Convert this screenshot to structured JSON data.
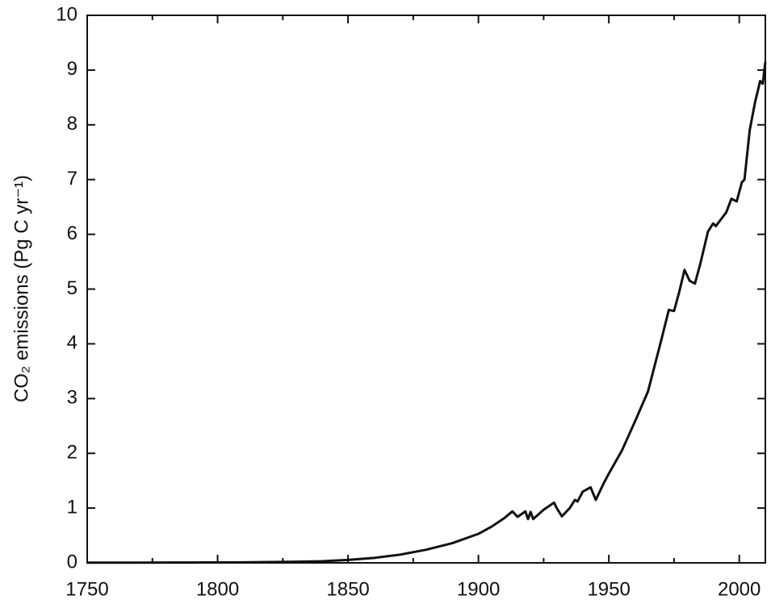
{
  "chart_data": {
    "type": "line",
    "ylabel": "CO₂ emissions (Pg C yr⁻¹)",
    "x": [
      1750,
      1760,
      1770,
      1780,
      1790,
      1800,
      1810,
      1820,
      1830,
      1840,
      1850,
      1860,
      1870,
      1880,
      1890,
      1900,
      1905,
      1910,
      1913,
      1915,
      1918,
      1919,
      1920,
      1921,
      1925,
      1929,
      1930,
      1932,
      1935,
      1937,
      1938,
      1940,
      1943,
      1945,
      1948,
      1950,
      1955,
      1960,
      1965,
      1970,
      1973,
      1975,
      1977,
      1979,
      1981,
      1983,
      1985,
      1988,
      1990,
      1991,
      1995,
      1997,
      1999,
      2001,
      2002,
      2004,
      2006,
      2008,
      2009,
      2010
    ],
    "series": [
      {
        "color": "#111111",
        "values": [
          0.003,
          0.003,
          0.004,
          0.005,
          0.006,
          0.008,
          0.01,
          0.014,
          0.02,
          0.03,
          0.054,
          0.09,
          0.15,
          0.24,
          0.36,
          0.53,
          0.66,
          0.82,
          0.94,
          0.84,
          0.94,
          0.8,
          0.93,
          0.8,
          0.97,
          1.1,
          1.0,
          0.85,
          1.0,
          1.15,
          1.12,
          1.3,
          1.38,
          1.15,
          1.45,
          1.63,
          2.05,
          2.58,
          3.13,
          4.05,
          4.62,
          4.6,
          4.95,
          5.35,
          5.15,
          5.1,
          5.45,
          6.05,
          6.2,
          6.15,
          6.4,
          6.65,
          6.6,
          6.95,
          7.0,
          7.9,
          8.4,
          8.8,
          8.75,
          9.15
        ]
      }
    ],
    "xlim": [
      1750,
      2010
    ],
    "ylim": [
      0,
      10
    ],
    "xticks": [
      1750,
      1800,
      1850,
      1900,
      1950,
      2000
    ],
    "xminorticks": [
      1775,
      1825,
      1875,
      1925,
      1975
    ],
    "yticks": [
      0,
      1,
      2,
      3,
      4,
      5,
      6,
      7,
      8,
      9,
      10
    ]
  }
}
